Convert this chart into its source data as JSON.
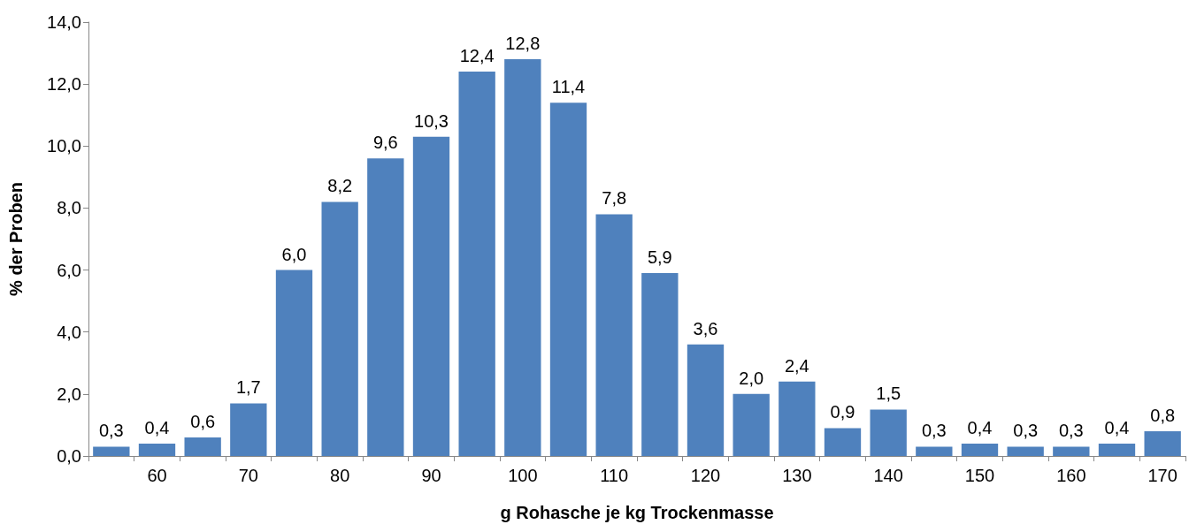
{
  "chart_data": {
    "type": "bar",
    "xlabel": "g Rohasche je kg Trockenmasse",
    "ylabel": "% der Proben",
    "categories": [
      null,
      "60",
      null,
      "70",
      null,
      "80",
      null,
      "90",
      null,
      "100",
      null,
      "110",
      null,
      "120",
      null,
      "130",
      null,
      "140",
      null,
      "150",
      null,
      "160",
      null,
      "170"
    ],
    "values": [
      0.3,
      0.4,
      0.6,
      1.7,
      6.0,
      8.2,
      9.6,
      10.3,
      12.4,
      12.8,
      11.4,
      7.8,
      5.9,
      3.6,
      2.0,
      2.4,
      0.9,
      1.5,
      0.3,
      0.4,
      0.3,
      0.3,
      0.4,
      0.8
    ],
    "value_labels": [
      "0,3",
      "0,4",
      "0,6",
      "1,7",
      "6,0",
      "8,2",
      "9,6",
      "10,3",
      "12,4",
      "12,8",
      "11,4",
      "7,8",
      "5,9",
      "3,6",
      "2,0",
      "2,4",
      "0,9",
      "1,5",
      "0,3",
      "0,4",
      "0,3",
      "0,3",
      "0,4",
      "0,8"
    ],
    "color": "#4f81bd",
    "ylim": [
      0,
      14
    ],
    "yticks": [
      {
        "value": 0,
        "label": "0,0"
      },
      {
        "value": 2,
        "label": "2,0"
      },
      {
        "value": 4,
        "label": "4,0"
      },
      {
        "value": 6,
        "label": "6,0"
      },
      {
        "value": 8,
        "label": "8,0"
      },
      {
        "value": 10,
        "label": "10,0"
      },
      {
        "value": 12,
        "label": "12,0"
      },
      {
        "value": 14,
        "label": "14,0"
      }
    ],
    "grid": false
  }
}
